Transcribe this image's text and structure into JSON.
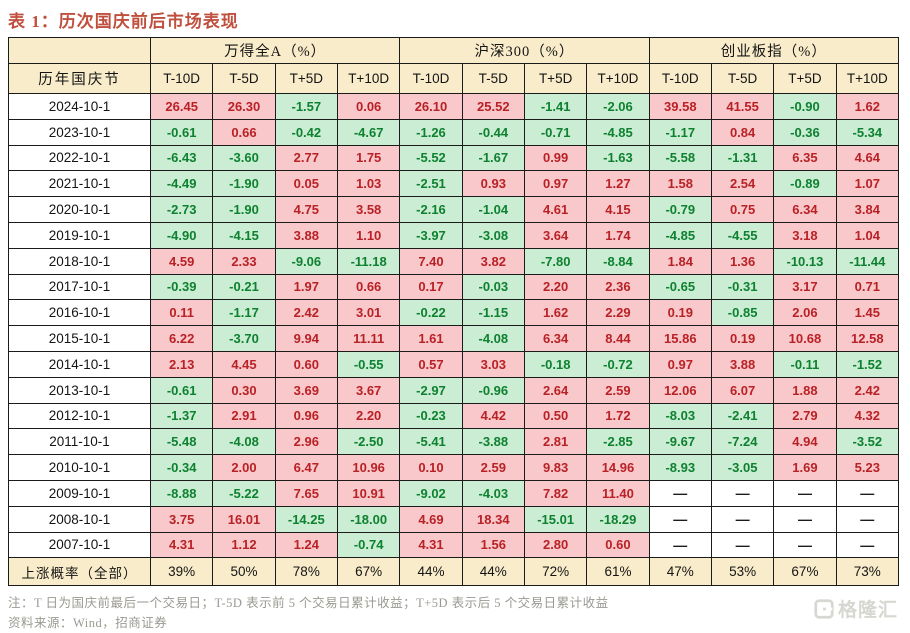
{
  "title": "表 1：历次国庆前后市场表现",
  "table": {
    "row_header_label": "历年国庆节",
    "groups": [
      {
        "label": "万得全A（%）"
      },
      {
        "label": "沪深300（%）"
      },
      {
        "label": "创业板指（%）"
      }
    ],
    "sub_headers": [
      "T-10D",
      "T-5D",
      "T+5D",
      "T+10D"
    ],
    "rows": [
      {
        "date": "2024-10-1",
        "values": [
          "26.45",
          "26.30",
          "-1.57",
          "0.06",
          "26.10",
          "25.52",
          "-1.41",
          "-2.06",
          "39.58",
          "41.55",
          "-0.90",
          "1.62"
        ]
      },
      {
        "date": "2023-10-1",
        "values": [
          "-0.61",
          "0.66",
          "-0.42",
          "-4.67",
          "-1.26",
          "-0.44",
          "-0.71",
          "-4.85",
          "-1.17",
          "0.84",
          "-0.36",
          "-5.34"
        ]
      },
      {
        "date": "2022-10-1",
        "values": [
          "-6.43",
          "-3.60",
          "2.77",
          "1.75",
          "-5.52",
          "-1.67",
          "0.99",
          "-1.63",
          "-5.58",
          "-1.31",
          "6.35",
          "4.64"
        ]
      },
      {
        "date": "2021-10-1",
        "values": [
          "-4.49",
          "-1.90",
          "0.05",
          "1.03",
          "-2.51",
          "0.93",
          "0.97",
          "1.27",
          "1.58",
          "2.54",
          "-0.89",
          "1.07"
        ]
      },
      {
        "date": "2020-10-1",
        "values": [
          "-2.73",
          "-1.90",
          "4.75",
          "3.58",
          "-2.16",
          "-1.04",
          "4.61",
          "4.15",
          "-0.79",
          "0.75",
          "6.34",
          "3.84"
        ]
      },
      {
        "date": "2019-10-1",
        "values": [
          "-4.90",
          "-4.15",
          "3.88",
          "1.10",
          "-3.97",
          "-3.08",
          "3.64",
          "1.74",
          "-4.85",
          "-4.55",
          "3.18",
          "1.04"
        ]
      },
      {
        "date": "2018-10-1",
        "values": [
          "4.59",
          "2.33",
          "-9.06",
          "-11.18",
          "7.40",
          "3.82",
          "-7.80",
          "-8.84",
          "1.84",
          "1.36",
          "-10.13",
          "-11.44"
        ]
      },
      {
        "date": "2017-10-1",
        "values": [
          "-0.39",
          "-0.21",
          "1.97",
          "0.66",
          "0.17",
          "-0.03",
          "2.20",
          "2.36",
          "-0.65",
          "-0.31",
          "3.17",
          "0.71"
        ]
      },
      {
        "date": "2016-10-1",
        "values": [
          "0.11",
          "-1.17",
          "2.42",
          "3.01",
          "-0.22",
          "-1.15",
          "1.62",
          "2.29",
          "0.19",
          "-0.85",
          "2.06",
          "1.45"
        ]
      },
      {
        "date": "2015-10-1",
        "values": [
          "6.22",
          "-3.70",
          "9.94",
          "11.11",
          "1.61",
          "-4.08",
          "6.34",
          "8.44",
          "15.86",
          "0.19",
          "10.68",
          "12.58"
        ]
      },
      {
        "date": "2014-10-1",
        "values": [
          "2.13",
          "4.45",
          "0.60",
          "-0.55",
          "0.57",
          "3.03",
          "-0.18",
          "-0.72",
          "0.97",
          "3.88",
          "-0.11",
          "-1.52"
        ]
      },
      {
        "date": "2013-10-1",
        "values": [
          "-0.61",
          "0.30",
          "3.69",
          "3.67",
          "-2.97",
          "-0.96",
          "2.64",
          "2.59",
          "12.06",
          "6.07",
          "1.88",
          "2.42"
        ]
      },
      {
        "date": "2012-10-1",
        "values": [
          "-1.37",
          "2.91",
          "0.96",
          "2.20",
          "-0.23",
          "4.42",
          "0.50",
          "1.72",
          "-8.03",
          "-2.41",
          "2.79",
          "4.32"
        ]
      },
      {
        "date": "2011-10-1",
        "values": [
          "-5.48",
          "-4.08",
          "2.96",
          "-2.50",
          "-5.41",
          "-3.88",
          "2.81",
          "-2.85",
          "-9.67",
          "-7.24",
          "4.94",
          "-3.52"
        ]
      },
      {
        "date": "2010-10-1",
        "values": [
          "-0.34",
          "2.00",
          "6.47",
          "10.96",
          "0.10",
          "2.59",
          "9.83",
          "14.96",
          "-8.93",
          "-3.05",
          "1.69",
          "5.23"
        ]
      },
      {
        "date": "2009-10-1",
        "values": [
          "-8.88",
          "-5.22",
          "7.65",
          "10.91",
          "-9.02",
          "-4.03",
          "7.82",
          "11.40",
          "—",
          "—",
          "—",
          "—"
        ]
      },
      {
        "date": "2008-10-1",
        "values": [
          "3.75",
          "16.01",
          "-14.25",
          "-18.00",
          "4.69",
          "18.34",
          "-15.01",
          "-18.29",
          "—",
          "—",
          "—",
          "—"
        ]
      },
      {
        "date": "2007-10-1",
        "values": [
          "4.31",
          "1.12",
          "1.24",
          "-0.74",
          "4.31",
          "1.56",
          "2.80",
          "0.60",
          "—",
          "—",
          "—",
          "—"
        ]
      }
    ],
    "summary": {
      "label": "上涨概率（全部）",
      "values": [
        "39%",
        "50%",
        "78%",
        "67%",
        "44%",
        "44%",
        "72%",
        "61%",
        "47%",
        "53%",
        "67%",
        "73%"
      ]
    }
  },
  "notes": [
    "注：T 日为国庆前最后一个交易日；T-5D 表示前 5 个交易日累计收益；T+5D 表示后 5 个交易日累计收益",
    "资料来源：Wind，招商证券"
  ],
  "watermark": {
    "text": "格隆汇"
  },
  "colors": {
    "positive_bg": "#f9c8ca",
    "positive_text": "#b82126",
    "negative_bg": "#caedd3",
    "negative_text": "#0e8130",
    "header_bg": "#f9ecca",
    "title_text": "#c0503e",
    "note_text": "#9a9992",
    "watermark_gray": "#d7d7d2"
  }
}
